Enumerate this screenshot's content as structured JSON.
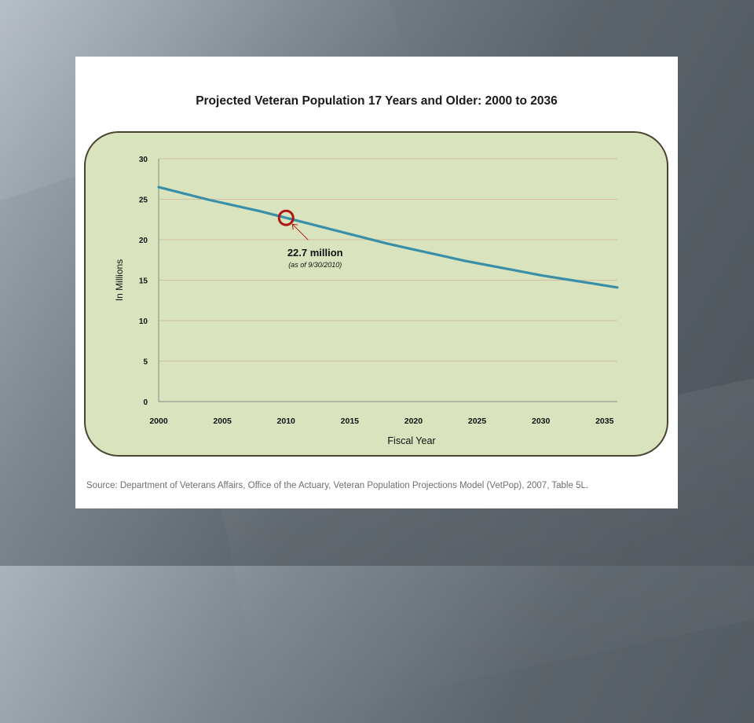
{
  "chart_data": {
    "type": "line",
    "title": "Projected Veteran Population 17 Years and Older: 2000 to 2036",
    "xlabel": "Fiscal Year",
    "ylabel": "In Millions",
    "xlim": [
      2000,
      2036
    ],
    "ylim": [
      0,
      30
    ],
    "x_ticks": [
      "2000",
      "2005",
      "2010",
      "2015",
      "2020",
      "2025",
      "2030",
      "2035"
    ],
    "y_ticks": [
      "0",
      "5",
      "10",
      "15",
      "20",
      "25",
      "30"
    ],
    "grid": true,
    "legend": "none",
    "series": [
      {
        "color": "#3a8fa8",
        "x": [
          2000,
          2002,
          2004,
          2006,
          2008,
          2010,
          2012,
          2014,
          2016,
          2018,
          2020,
          2022,
          2024,
          2026,
          2028,
          2030,
          2032,
          2034,
          2036
        ],
        "y": [
          26.5,
          25.7,
          24.9,
          24.2,
          23.5,
          22.7,
          21.9,
          21.1,
          20.3,
          19.5,
          18.8,
          18.1,
          17.4,
          16.8,
          16.2,
          15.6,
          15.1,
          14.6,
          14.1
        ]
      }
    ],
    "annotations": [
      {
        "x": 2010,
        "y": 22.7,
        "label": "22.7 million",
        "sublabel": "(as of 9/30/2010)",
        "marker_color": "#b01515"
      }
    ]
  },
  "source_text": "Source: Department of Veterans Affairs, Office of the Actuary, Veteran Population Projections Model (VetPop), 2007, Table 5L.",
  "colors": {
    "panel_fill": "#d9e4bf",
    "panel_border": "#4b4331",
    "gridline": "#d2bca4",
    "line": "#3a8fa8",
    "marker": "#b01515"
  }
}
